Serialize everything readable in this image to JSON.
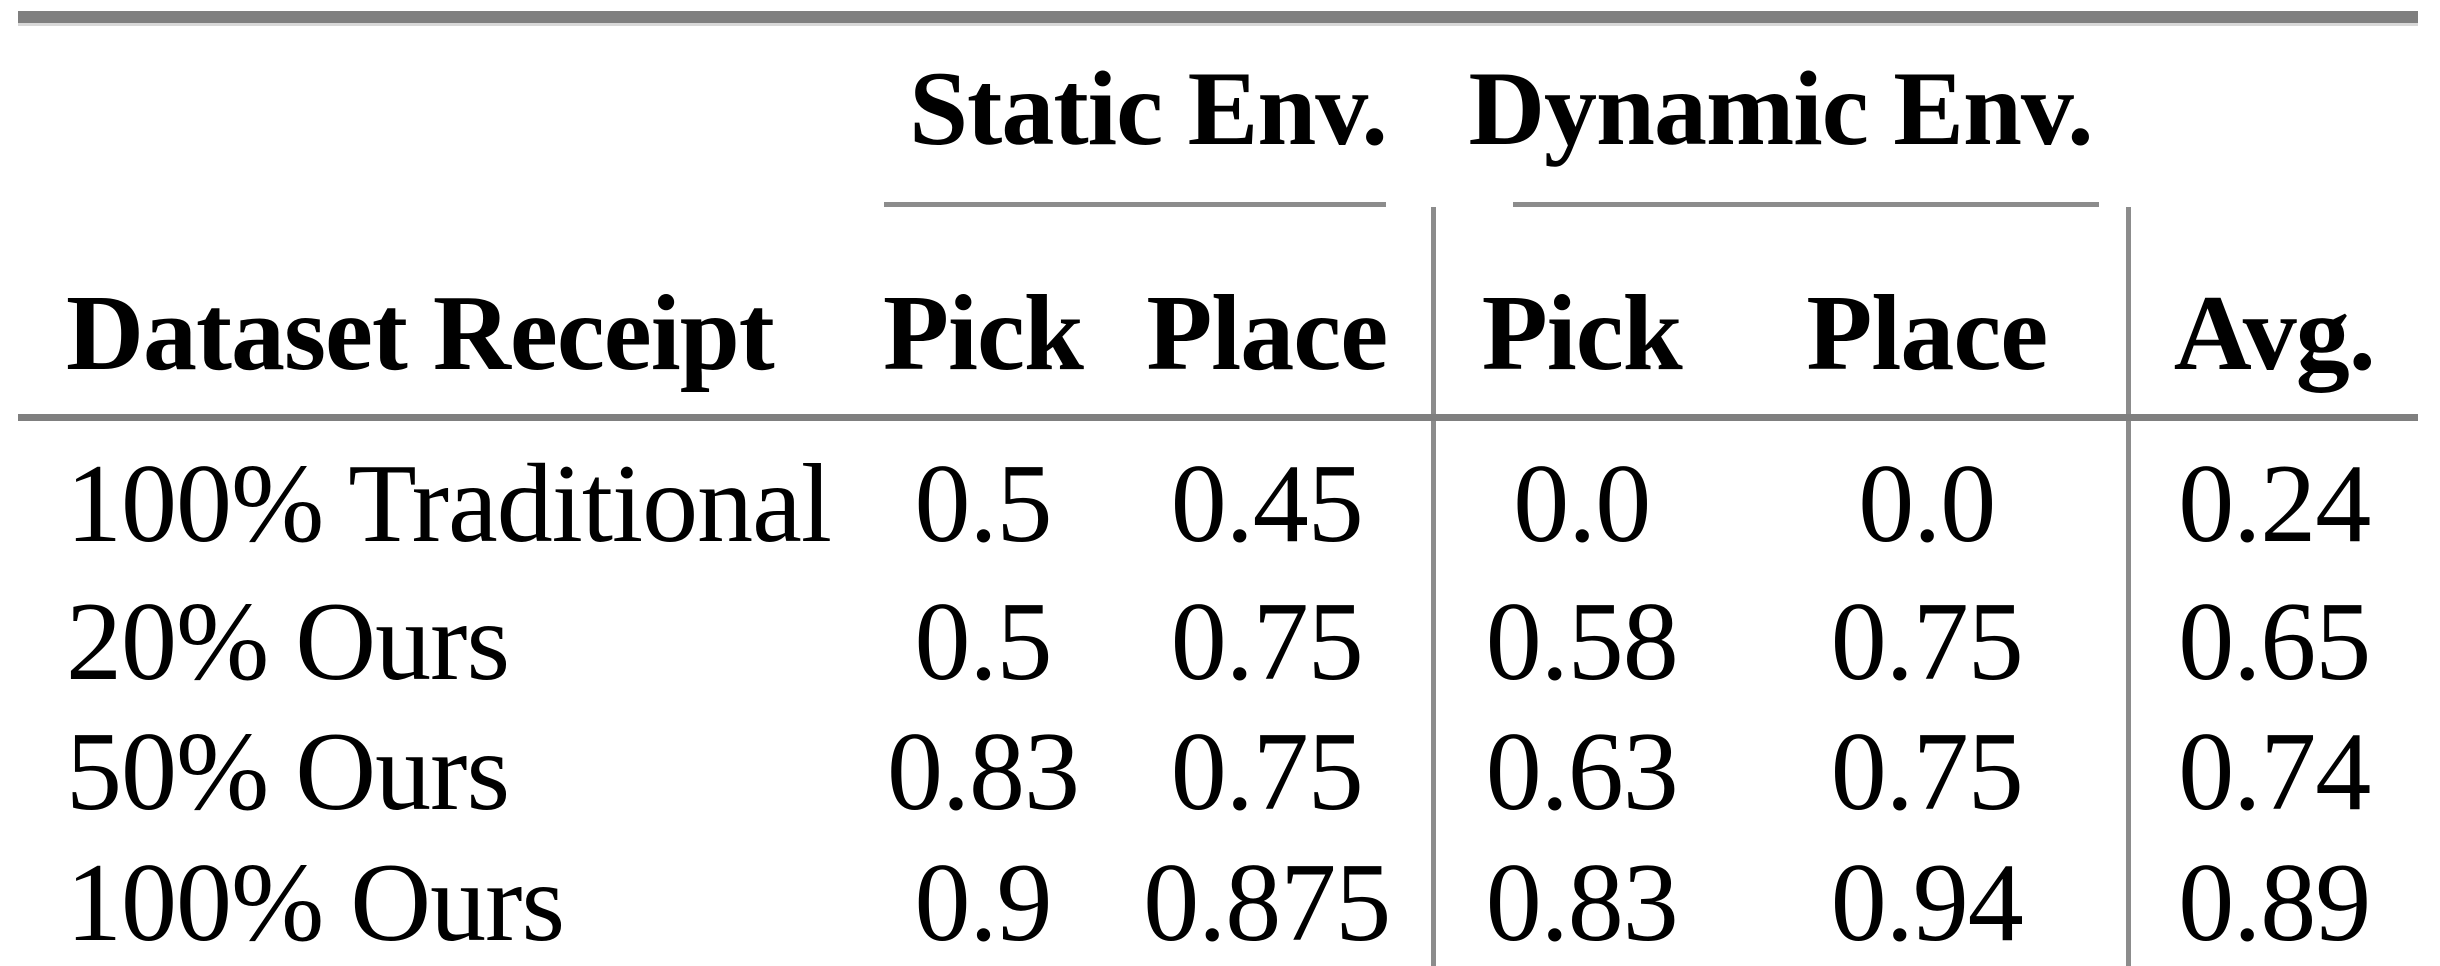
{
  "document": {
    "kind": "paper-results-table",
    "background": "#ffffff"
  },
  "table": {
    "group_headers": {
      "static": "Static Env.",
      "dynamic": "Dynamic Env."
    },
    "column_headers": {
      "row_label": "Dataset Receipt",
      "static_pick": "Pick",
      "static_place": "Place",
      "dynamic_pick": "Pick",
      "dynamic_place": "Place",
      "avg": "Avg."
    },
    "rows": [
      {
        "label": "100% Traditional",
        "values": [
          "0.5",
          "0.45",
          "0.0",
          "0.0",
          "0.24"
        ]
      },
      {
        "label": "20% Ours",
        "values": [
          "0.5",
          "0.75",
          "0.58",
          "0.75",
          "0.65"
        ]
      },
      {
        "label": "50% Ours",
        "values": [
          "0.83",
          "0.75",
          "0.63",
          "0.75",
          "0.74"
        ]
      },
      {
        "label": "100% Ours",
        "values": [
          "0.9",
          "0.875",
          "0.83",
          "0.94",
          "0.89"
        ]
      }
    ],
    "colors": {
      "rule_thick": "#7f7f7f",
      "rule_thin": "#8c8c8c",
      "rule_edge_light": "#d8d8d8",
      "text": "#000000",
      "background": "#ffffff"
    }
  },
  "chart_data": {
    "type": "table",
    "title": "",
    "categories": [
      "100% Traditional",
      "20% Ours",
      "50% Ours",
      "100% Ours"
    ],
    "columns": [
      "Static Env. Pick",
      "Static Env. Place",
      "Dynamic Env. Pick",
      "Dynamic Env. Place",
      "Avg."
    ],
    "series": [
      {
        "name": "Static Env. Pick",
        "values": [
          0.5,
          0.5,
          0.83,
          0.9
        ]
      },
      {
        "name": "Static Env. Place",
        "values": [
          0.45,
          0.75,
          0.75,
          0.875
        ]
      },
      {
        "name": "Dynamic Env. Pick",
        "values": [
          0.0,
          0.58,
          0.63,
          0.83
        ]
      },
      {
        "name": "Dynamic Env. Place",
        "values": [
          0.0,
          0.75,
          0.75,
          0.94
        ]
      },
      {
        "name": "Avg.",
        "values": [
          0.24,
          0.65,
          0.74,
          0.89
        ]
      }
    ]
  }
}
